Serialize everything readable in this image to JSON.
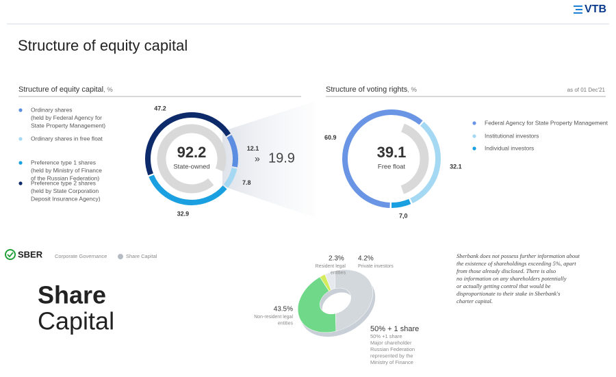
{
  "header": {
    "logo": "VTB",
    "title": "Structure of equity capital"
  },
  "chart_data": [
    {
      "type": "donut",
      "title": "Structure of equity capital",
      "title_suffix": ", %",
      "categories": [
        [
          "Ordinary shares",
          "(held by Federal Agency for",
          "State Property Management)"
        ],
        [
          "Ordinary shares in free float"
        ],
        [
          "Preference type 1 shares",
          "(held by Ministry of Finance",
          "of the Russian Federation)"
        ],
        [
          "Preference type 2 shares",
          "(held by State Corporation",
          "Deposit Insurance Agency)"
        ]
      ],
      "values": [
        12.1,
        7.8,
        32.9,
        47.2
      ],
      "colors": [
        "#5b8ee0",
        "#a5d8f3",
        "#1aa0e0",
        "#0d2a6b"
      ],
      "center_value": 92.2,
      "center_label": "State-owned",
      "callout_symbol": "»",
      "callout_value": 19.9
    },
    {
      "type": "donut",
      "title": "Structure of voting rights",
      "title_suffix": ", %",
      "date": "as of 01 Dec'21",
      "categories": [
        "Federal Agency for State Property Management",
        "Institutional investors",
        "Individual investors"
      ],
      "values": [
        60.9,
        32.1,
        7.0
      ],
      "value_labels": [
        "60.9",
        "32.1",
        "7,0"
      ],
      "colors": [
        "#6a94e4",
        "#a5d8f3",
        "#1aa0e0"
      ],
      "center_value": 39.1,
      "center_label": "Free float"
    },
    {
      "type": "pie3d",
      "categories": [
        [
          "Non-resident legal",
          "entities"
        ],
        [
          "Resident legal",
          "entities"
        ],
        [
          "Private investors"
        ],
        [
          "50% +1 share",
          "Major shareholder",
          "Russian Federation",
          "represented by the",
          "Ministry of Finance"
        ]
      ],
      "values": [
        43.5,
        2.3,
        4.2,
        50
      ],
      "value_labels": [
        "43.5%",
        "2.3%",
        "4.2%",
        "50% + 1 share"
      ],
      "colors": [
        "#6fd889",
        "#d4ec5c",
        "#e6eaee",
        "#d3d8dd"
      ]
    }
  ],
  "sber": {
    "logo": "SBER",
    "breadcrumb": [
      "Corporate Governance",
      "Share Capital"
    ],
    "title": [
      "Share",
      "Capital"
    ],
    "note": [
      "Sberbank does not possess further information about",
      "the existence of shareholdings exceeding 5%, apart",
      "from those already disclosed. There is also",
      "no information on any shareholders potentially",
      "or actually getting control that would be",
      "disproportionate to their stake in Sberbank's",
      "charter capital."
    ]
  }
}
